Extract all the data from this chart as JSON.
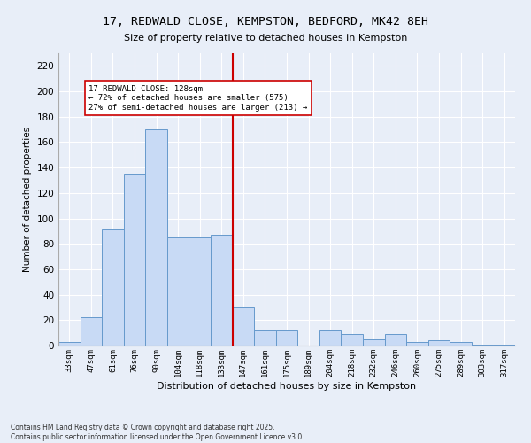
{
  "title": "17, REDWALD CLOSE, KEMPSTON, BEDFORD, MK42 8EH",
  "subtitle": "Size of property relative to detached houses in Kempston",
  "xlabel": "Distribution of detached houses by size in Kempston",
  "ylabel": "Number of detached properties",
  "bin_labels": [
    "33sqm",
    "47sqm",
    "61sqm",
    "76sqm",
    "90sqm",
    "104sqm",
    "118sqm",
    "133sqm",
    "147sqm",
    "161sqm",
    "175sqm",
    "189sqm",
    "204sqm",
    "218sqm",
    "232sqm",
    "246sqm",
    "260sqm",
    "275sqm",
    "289sqm",
    "303sqm",
    "317sqm"
  ],
  "bar_heights": [
    3,
    22,
    91,
    135,
    170,
    85,
    85,
    87,
    30,
    12,
    12,
    0,
    12,
    9,
    5,
    9,
    3,
    4,
    3,
    1,
    1
  ],
  "bar_color": "#c8daf5",
  "bar_edge_color": "#6699cc",
  "vline_x": 7.5,
  "vline_color": "#cc0000",
  "annotation_text": "17 REDWALD CLOSE: 128sqm\n← 72% of detached houses are smaller (575)\n27% of semi-detached houses are larger (213) →",
  "annotation_box_color": "#cc0000",
  "ylim": [
    0,
    230
  ],
  "yticks": [
    0,
    20,
    40,
    60,
    80,
    100,
    120,
    140,
    160,
    180,
    200,
    220
  ],
  "footer_line1": "Contains HM Land Registry data © Crown copyright and database right 2025.",
  "footer_line2": "Contains public sector information licensed under the Open Government Licence v3.0.",
  "bg_color": "#e8eef8",
  "plot_bg_color": "#e8eef8"
}
